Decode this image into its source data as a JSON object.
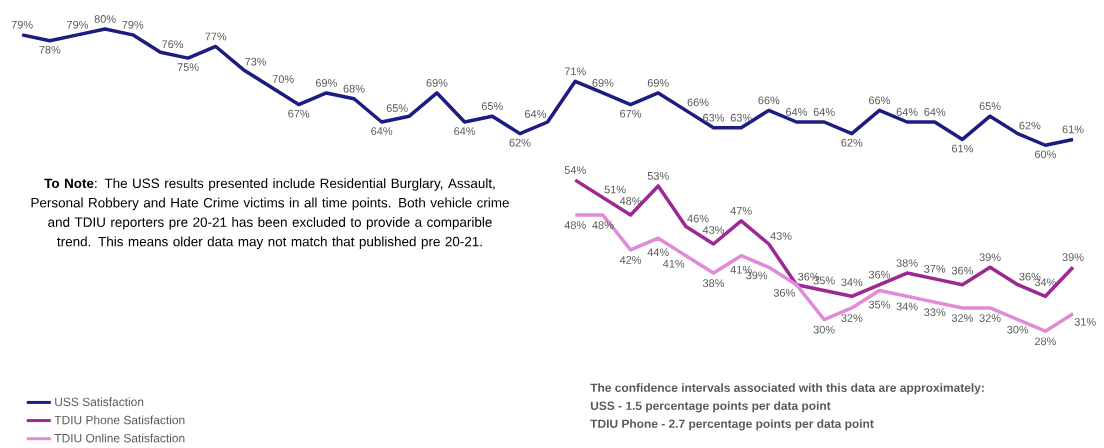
{
  "chart_data": {
    "type": "line",
    "categories": [
      null,
      null,
      null,
      null,
      null,
      null,
      null,
      null,
      null,
      null,
      null,
      null,
      null,
      null,
      null,
      null,
      null,
      null,
      null,
      null,
      null,
      null,
      null,
      null,
      null,
      null,
      null,
      null,
      null,
      null,
      null,
      null,
      null,
      null,
      null,
      null,
      null,
      null,
      null
    ],
    "series": [
      {
        "name": "USS Satisfaction",
        "color": "#1c1c82",
        "values": [
          79,
          78,
          79,
          80,
          79,
          76,
          75,
          77,
          73,
          70,
          67,
          69,
          68,
          64,
          65,
          69,
          64,
          65,
          62,
          64,
          71,
          69,
          67,
          69,
          66,
          63,
          63,
          66,
          64,
          64,
          62,
          66,
          64,
          64,
          61,
          65,
          62,
          60,
          61
        ],
        "value_labels": [
          "79%",
          "78%",
          "79%",
          "80%",
          "79%",
          "76%",
          "75%",
          "77%",
          "73%",
          "70%",
          "67%",
          "69%",
          "68%",
          "64%",
          "65%",
          "69%",
          "64%",
          "65%",
          "62%",
          "64%",
          "71%",
          "69%",
          "67%",
          "69%",
          "66%",
          "63%",
          "63%",
          "66%",
          "64%",
          "64%",
          "62%",
          "66%",
          "64%",
          "64%",
          "61%",
          "65%",
          "62%",
          "60%",
          "61%"
        ]
      },
      {
        "name": "TDIU Phone Satisfaction",
        "color": "#9c2893",
        "values": [
          null,
          null,
          null,
          null,
          null,
          null,
          null,
          null,
          null,
          null,
          null,
          null,
          null,
          null,
          null,
          null,
          null,
          null,
          null,
          null,
          54,
          51,
          48,
          53,
          46,
          43,
          47,
          43,
          36,
          35,
          34,
          36,
          38,
          37,
          36,
          39,
          36,
          34,
          39
        ],
        "value_labels": [
          null,
          null,
          null,
          null,
          null,
          null,
          null,
          null,
          null,
          null,
          null,
          null,
          null,
          null,
          null,
          null,
          null,
          null,
          null,
          null,
          "54%",
          "51%",
          "48%",
          "53%",
          "46%",
          "43%",
          "47%",
          "43%",
          "36%",
          "35%",
          "34%",
          "36%",
          "38%",
          "37%",
          "36%",
          "39%",
          "36%",
          "34%",
          "39%"
        ]
      },
      {
        "name": "TDIU Online Satisfaction",
        "color": "#e08ad8",
        "values": [
          null,
          null,
          null,
          null,
          null,
          null,
          null,
          null,
          null,
          null,
          null,
          null,
          null,
          null,
          null,
          null,
          null,
          null,
          null,
          null,
          48,
          48,
          42,
          44,
          41,
          38,
          41,
          39,
          36,
          30,
          32,
          35,
          34,
          33,
          32,
          32,
          30,
          28,
          31
        ],
        "value_labels": [
          null,
          null,
          null,
          null,
          null,
          null,
          null,
          null,
          null,
          null,
          null,
          null,
          null,
          null,
          null,
          null,
          null,
          null,
          null,
          null,
          "48%",
          "48%",
          "42%",
          "44%",
          "41%",
          "38%",
          "41%",
          "39%",
          "36%",
          "30%",
          "32%",
          "35%",
          "34%",
          "33%",
          "32%",
          "32%",
          "30%",
          "28%",
          "31%"
        ]
      }
    ],
    "legend": "bottom left",
    "marker": "none",
    "line_style": "solid",
    "annotations": [
      "**To Note**: The USS results presented include Residential Burglary, Assault, Personal Robbery and Hate Crime victims in all time points. Both vehicle crime and  TDIU reporters pre 20-21 has been excluded to provide a comparible trend. This means older data may not match that published pre 20-21.",
      "The confidence intervals associated with this data are approximately:",
      "USS - 1.5 percentage points per data point",
      "TDIU Phone - 2.7 percentage points per data point"
    ]
  }
}
